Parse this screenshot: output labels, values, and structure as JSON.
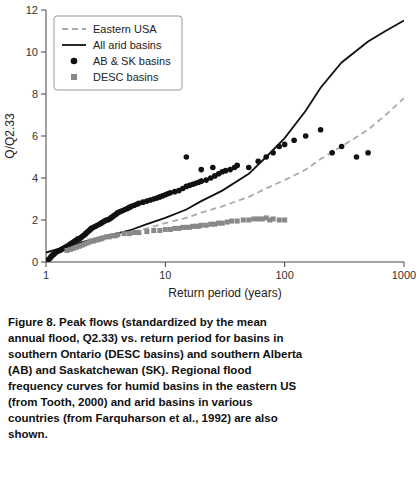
{
  "chart_data": {
    "type": "line",
    "xlabel": "Return period (years)",
    "ylabel": "Q/Q2.33",
    "log": "x",
    "xlim": [
      1,
      1000
    ],
    "ylim": [
      0,
      12
    ],
    "xticks": [
      1,
      10,
      100,
      1000
    ],
    "yticks": [
      0,
      2,
      4,
      6,
      8,
      10,
      12
    ],
    "grid": false,
    "legend": "upper left",
    "series": [
      {
        "name": "Eastern USA",
        "type": "line",
        "line_style": "dashed",
        "color": "#aaaaaa",
        "x": [
          1,
          1.5,
          2,
          3,
          5,
          7,
          10,
          15,
          20,
          30,
          50,
          70,
          100,
          150,
          200,
          300,
          500,
          700,
          1000
        ],
        "values": [
          0.45,
          0.7,
          0.9,
          1.1,
          1.4,
          1.6,
          1.85,
          2.1,
          2.35,
          2.65,
          3.1,
          3.5,
          3.9,
          4.4,
          4.9,
          5.5,
          6.3,
          7.0,
          7.8
        ]
      },
      {
        "name": "All arid basins",
        "type": "line",
        "line_style": "solid",
        "color": "#111111",
        "x": [
          1,
          1.5,
          2,
          3,
          5,
          7,
          10,
          15,
          20,
          30,
          50,
          70,
          100,
          150,
          200,
          300,
          500,
          700,
          1000
        ],
        "values": [
          0.45,
          0.75,
          0.95,
          1.2,
          1.5,
          1.8,
          2.1,
          2.5,
          2.9,
          3.4,
          4.2,
          5.0,
          5.9,
          7.2,
          8.3,
          9.5,
          10.5,
          11.0,
          11.5
        ]
      },
      {
        "name": "AB & SK basins",
        "type": "scatter",
        "marker": "circle",
        "color": "#111111",
        "x": [
          1.05,
          1.08,
          1.1,
          1.12,
          1.15,
          1.18,
          1.2,
          1.25,
          1.3,
          1.35,
          1.4,
          1.45,
          1.5,
          1.55,
          1.6,
          1.65,
          1.7,
          1.75,
          1.8,
          1.85,
          1.9,
          1.95,
          2.0,
          2.05,
          2.1,
          2.15,
          2.2,
          2.25,
          2.3,
          2.35,
          2.4,
          2.5,
          2.6,
          2.7,
          2.8,
          2.9,
          3.0,
          3.1,
          3.2,
          3.3,
          3.4,
          3.5,
          3.6,
          3.7,
          3.8,
          3.9,
          4.0,
          4.2,
          4.4,
          4.6,
          4.8,
          5.0,
          5.2,
          5.5,
          5.8,
          6.0,
          6.5,
          7.0,
          7.5,
          8.0,
          8.5,
          9.0,
          9.5,
          10.0,
          10.5,
          11.0,
          12.0,
          13.0,
          14.0,
          15.0,
          16.0,
          17.0,
          18.0,
          19.0,
          20.0,
          22.0,
          24.0,
          26.0,
          28.0,
          30.0,
          32.0,
          35.0,
          38.0,
          40.0,
          15.0,
          20.0,
          25.0,
          50.0,
          60.0,
          70.0,
          80.0,
          90.0,
          100.0,
          120.0,
          150.0,
          200.0,
          250.0,
          300.0,
          400.0,
          500.0
        ],
        "values": [
          0.12,
          0.18,
          0.25,
          0.3,
          0.35,
          0.4,
          0.45,
          0.5,
          0.55,
          0.6,
          0.65,
          0.7,
          0.75,
          0.8,
          0.85,
          0.9,
          0.95,
          1.0,
          1.05,
          1.1,
          1.1,
          1.15,
          1.2,
          1.25,
          1.3,
          1.35,
          1.4,
          1.45,
          1.5,
          1.55,
          1.6,
          1.65,
          1.7,
          1.75,
          1.8,
          1.85,
          1.9,
          1.95,
          2.0,
          2.0,
          2.05,
          2.1,
          2.15,
          2.2,
          2.25,
          2.3,
          2.35,
          2.4,
          2.45,
          2.5,
          2.55,
          2.6,
          2.65,
          2.7,
          2.75,
          2.8,
          2.85,
          2.9,
          2.95,
          3.0,
          3.05,
          3.1,
          3.15,
          3.2,
          3.25,
          3.3,
          3.35,
          3.4,
          3.5,
          3.6,
          3.65,
          3.7,
          3.75,
          3.8,
          3.85,
          3.9,
          4.0,
          4.1,
          4.2,
          4.3,
          4.35,
          4.4,
          4.5,
          4.6,
          5.0,
          4.4,
          4.5,
          4.5,
          4.8,
          5.0,
          5.2,
          5.5,
          5.6,
          5.8,
          6.0,
          6.3,
          5.2,
          5.5,
          5.0,
          5.2
        ]
      },
      {
        "name": "DESC basins",
        "type": "scatter",
        "marker": "square",
        "color": "#888888",
        "x": [
          1.5,
          1.6,
          1.7,
          1.8,
          1.9,
          2.0,
          2.1,
          2.2,
          2.3,
          2.4,
          2.5,
          2.6,
          2.7,
          2.8,
          2.9,
          3.0,
          3.2,
          3.4,
          3.6,
          3.8,
          4.0,
          4.5,
          5.0,
          5.5,
          6.0,
          7.0,
          8.0,
          9.0,
          10.0,
          11.0,
          12.0,
          13.0,
          14.0,
          15.0,
          16.0,
          17.0,
          18.0,
          19.0,
          20.0,
          22.0,
          24.0,
          26.0,
          28.0,
          30.0,
          33.0,
          36.0,
          40.0,
          45.0,
          50.0,
          55.0,
          60.0,
          65.0,
          70.0,
          75.0,
          80.0,
          90.0,
          100.0
        ],
        "values": [
          0.55,
          0.6,
          0.65,
          0.7,
          0.75,
          0.8,
          0.85,
          0.9,
          0.95,
          1.0,
          1.0,
          1.05,
          1.05,
          1.1,
          1.1,
          1.15,
          1.2,
          1.2,
          1.25,
          1.25,
          1.3,
          1.35,
          1.35,
          1.4,
          1.4,
          1.45,
          1.5,
          1.5,
          1.55,
          1.55,
          1.6,
          1.6,
          1.65,
          1.65,
          1.65,
          1.7,
          1.7,
          1.7,
          1.75,
          1.75,
          1.8,
          1.8,
          1.85,
          1.85,
          1.9,
          1.95,
          1.95,
          2.0,
          2.0,
          2.05,
          2.05,
          2.05,
          2.1,
          2.0,
          2.05,
          2.0,
          2.0
        ]
      }
    ],
    "caption": [
      "Figure 8.  Peak flows (standardized by the mean",
      "annual flood, Q2.33) vs. return period for basins in",
      "southern Ontario (DESC basins) and southern Alberta",
      "(AB) and Saskatchewan (SK). Regional flood",
      "frequency curves for humid basins in the eastern US",
      "(from Tooth, 2000) and arid basins in various",
      "countries (from Farquharson et al., 1992) are also",
      "shown."
    ]
  }
}
